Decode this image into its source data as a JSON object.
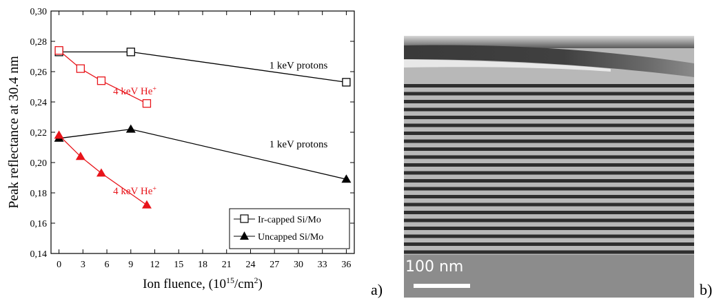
{
  "chart_data": {
    "type": "line",
    "xlabel": "Ion fluence, (10",
    "xlabel_sup": "15",
    "xlabel_end": "/cm",
    "xlabel_sup2": "2",
    "xlabel_close": ")",
    "ylabel": "Peak reflectance at 30.4 nm",
    "xlim": [
      -1,
      37
    ],
    "ylim": [
      0.14,
      0.3
    ],
    "x_ticks": [
      0,
      3,
      6,
      9,
      12,
      15,
      18,
      21,
      24,
      27,
      30,
      33,
      36
    ],
    "x_tick_labels": [
      "0",
      "3",
      "6",
      "9",
      "12",
      "15",
      "18",
      "21",
      "24",
      "27",
      "30",
      "33",
      "36"
    ],
    "y_ticks": [
      0.14,
      0.16,
      0.18,
      0.2,
      0.22,
      0.24,
      0.26,
      0.28,
      0.3
    ],
    "y_tick_labels": [
      "0,14",
      "0,16",
      "0,18",
      "0,20",
      "0,22",
      "0,24",
      "0,26",
      "0,28",
      "0,30"
    ],
    "grid": false,
    "legend_position": "bottom-right",
    "series": [
      {
        "name": "Ir-capped Si/Mo",
        "condition": "1 keV protons",
        "color": "#000000",
        "marker": "square-open",
        "x": [
          0,
          9,
          36
        ],
        "y": [
          0.273,
          0.273,
          0.253
        ]
      },
      {
        "name": "Ir-capped Si/Mo",
        "condition": "4 keV He+",
        "color": "#e8141a",
        "marker": "square-open",
        "x": [
          0,
          2.7,
          5.3,
          11
        ],
        "y": [
          0.274,
          0.262,
          0.254,
          0.239
        ]
      },
      {
        "name": "Uncapped Si/Mo",
        "condition": "1 keV protons",
        "color": "#000000",
        "marker": "triangle-filled",
        "x": [
          0,
          9,
          36
        ],
        "y": [
          0.216,
          0.222,
          0.189
        ]
      },
      {
        "name": "Uncapped Si/Mo",
        "condition": "4 keV He+",
        "color": "#e8141a",
        "marker": "triangle-filled",
        "x": [
          0,
          2.7,
          5.3,
          11
        ],
        "y": [
          0.218,
          0.204,
          0.193,
          0.172
        ]
      }
    ],
    "annotations": [
      {
        "text": "1 keV protons",
        "sup": "",
        "x": 30,
        "y": 0.262,
        "color": "#000000"
      },
      {
        "text": "4 keV He",
        "sup": "+",
        "x": 9.5,
        "y": 0.245,
        "color": "#e8141a"
      },
      {
        "text": "1 keV protons",
        "sup": "",
        "x": 30,
        "y": 0.21,
        "color": "#000000"
      },
      {
        "text": "4 keV He",
        "sup": "+",
        "x": 9.5,
        "y": 0.179,
        "color": "#e8141a"
      }
    ],
    "legend": [
      {
        "label": "Ir-capped Si/Mo",
        "marker": "square-open"
      },
      {
        "label": "Uncapped Si/Mo",
        "marker": "triangle-filled"
      }
    ]
  },
  "panels": {
    "a_label": "a)",
    "b_label": "b)",
    "scale_bar_text": "100 nm",
    "image_description_icon": "tem-multilayer-micrograph"
  }
}
